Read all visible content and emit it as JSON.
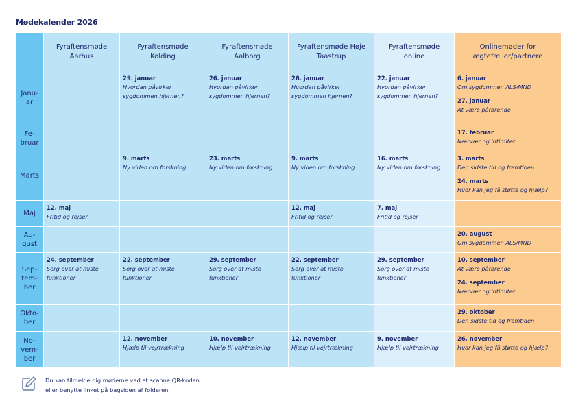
{
  "title": "Mødekalender 2026",
  "columns": [
    {
      "label": "Fyraftensmøde Aarhus",
      "type": "c"
    },
    {
      "label": "Fyraftensmøde Kolding",
      "type": "c"
    },
    {
      "label": "Fyraftensmøde Aalborg",
      "type": "c"
    },
    {
      "label": "Fyraftensmøde Høje Taastrup",
      "type": "c"
    },
    {
      "label": "Fyraftensmøde online",
      "type": "online"
    },
    {
      "label": "Onlinemøder for ægtefæller/partnere",
      "type": "partner"
    }
  ],
  "rows": [
    {
      "month": "Janu-\nar",
      "height": 79,
      "cells": [
        [],
        [
          {
            "date": "29. januar",
            "topic": "Hvordan påvirker sygdommen hjernen?"
          }
        ],
        [
          {
            "date": "26. januar",
            "topic": "Hvordan påvirker sygdommen hjernen?"
          }
        ],
        [
          {
            "date": "26. januar",
            "topic": "Hvordan påvirker sygdommen hjernen?"
          }
        ],
        [
          {
            "date": "22. januar",
            "topic": "Hvordan påvirker sygdommen hjernen?"
          }
        ],
        [
          {
            "date": "6. januar",
            "topic": "Om sygdommen ALS/MND"
          },
          {
            "date": "27. januar",
            "topic": "At være pårørende"
          }
        ]
      ]
    },
    {
      "month": "Fe-\nbruar",
      "height": 38,
      "cells": [
        [],
        [],
        [],
        [],
        [],
        [
          {
            "date": "17. februar",
            "topic": "Nærvær og intimitet"
          }
        ]
      ]
    },
    {
      "month": "Marts",
      "height": 72,
      "cells": [
        [],
        [
          {
            "date": "9. marts",
            "topic": "Ny viden om forskning"
          }
        ],
        [
          {
            "date": "23. marts",
            "topic": "Ny viden om forskning"
          }
        ],
        [
          {
            "date": "9. marts",
            "topic": "Ny viden om forskning"
          }
        ],
        [
          {
            "date": "16. marts",
            "topic": "Ny viden om forskning"
          }
        ],
        [
          {
            "date": "3. marts",
            "topic": "Den sidste tid og fremtiden"
          },
          {
            "date": "24. marts",
            "topic": "Hvor kan jeg få støtte og hjælp?"
          }
        ]
      ]
    },
    {
      "month": "Maj",
      "height": 38,
      "cells": [
        [
          {
            "date": "12. maj",
            "topic": "Fritid og rejser"
          }
        ],
        [],
        [],
        [
          {
            "date": "12. maj",
            "topic": "Fritid og rejser"
          }
        ],
        [
          {
            "date": "7. maj",
            "topic": "Fritid og rejser"
          }
        ],
        []
      ]
    },
    {
      "month": "Au-\ngust",
      "height": 38,
      "cells": [
        [],
        [],
        [],
        [],
        [],
        [
          {
            "date": "20. august",
            "topic": "Om sygdommen ALS/MND"
          }
        ]
      ]
    },
    {
      "month": "Sep-\ntem-\nber",
      "height": 76,
      "cells": [
        [
          {
            "date": "24. september",
            "topic": "Sorg over at miste funktioner"
          }
        ],
        [
          {
            "date": "22. september",
            "topic": "Sorg over at miste funktioner"
          }
        ],
        [
          {
            "date": "29. september",
            "topic": "Sorg over at miste funktioner"
          }
        ],
        [
          {
            "date": "22. september",
            "topic": "Sorg over at miste funktioner"
          }
        ],
        [
          {
            "date": "29. september",
            "topic": "Sorg over at miste funktioner"
          }
        ],
        [
          {
            "date": "10. september",
            "topic": "At være pårørende"
          },
          {
            "date": "24. september",
            "topic": "Nærvær og intimitet"
          }
        ]
      ]
    },
    {
      "month": "Okto-\nber",
      "height": 39,
      "cells": [
        [],
        [],
        [],
        [],
        [],
        [
          {
            "date": "29. oktober",
            "topic": "Den sidste tid og fremtiden"
          }
        ]
      ]
    },
    {
      "month": "No-\nvem-\nber",
      "height": 53,
      "cells": [
        [],
        [
          {
            "date": "12. november",
            "topic": "Hjælp til vejrtrækning"
          }
        ],
        [
          {
            "date": "10. november",
            "topic": "Hjælp til vejrtrækning"
          }
        ],
        [
          {
            "date": "12. november",
            "topic": "Hjælp til vejrtrækning"
          }
        ],
        [
          {
            "date": "9. november",
            "topic": "Hjælp til vejrtrækning"
          }
        ],
        [
          {
            "date": "26. november",
            "topic": "Hvor kan jeg få støtte og hjælp?"
          }
        ]
      ]
    }
  ],
  "note": {
    "line1": "Du kan tilmelde dig møderne ved at scanne QR-koden",
    "line2": "eller benytte linket på bagsiden af folderen.",
    "icon": "edit-pencil-icon"
  },
  "colors": {
    "month": "#6ac6f0",
    "cell": "#bde3f7",
    "online": "#dcf0fb",
    "partner": "#fccb8f",
    "text": "#1f2a6b"
  }
}
